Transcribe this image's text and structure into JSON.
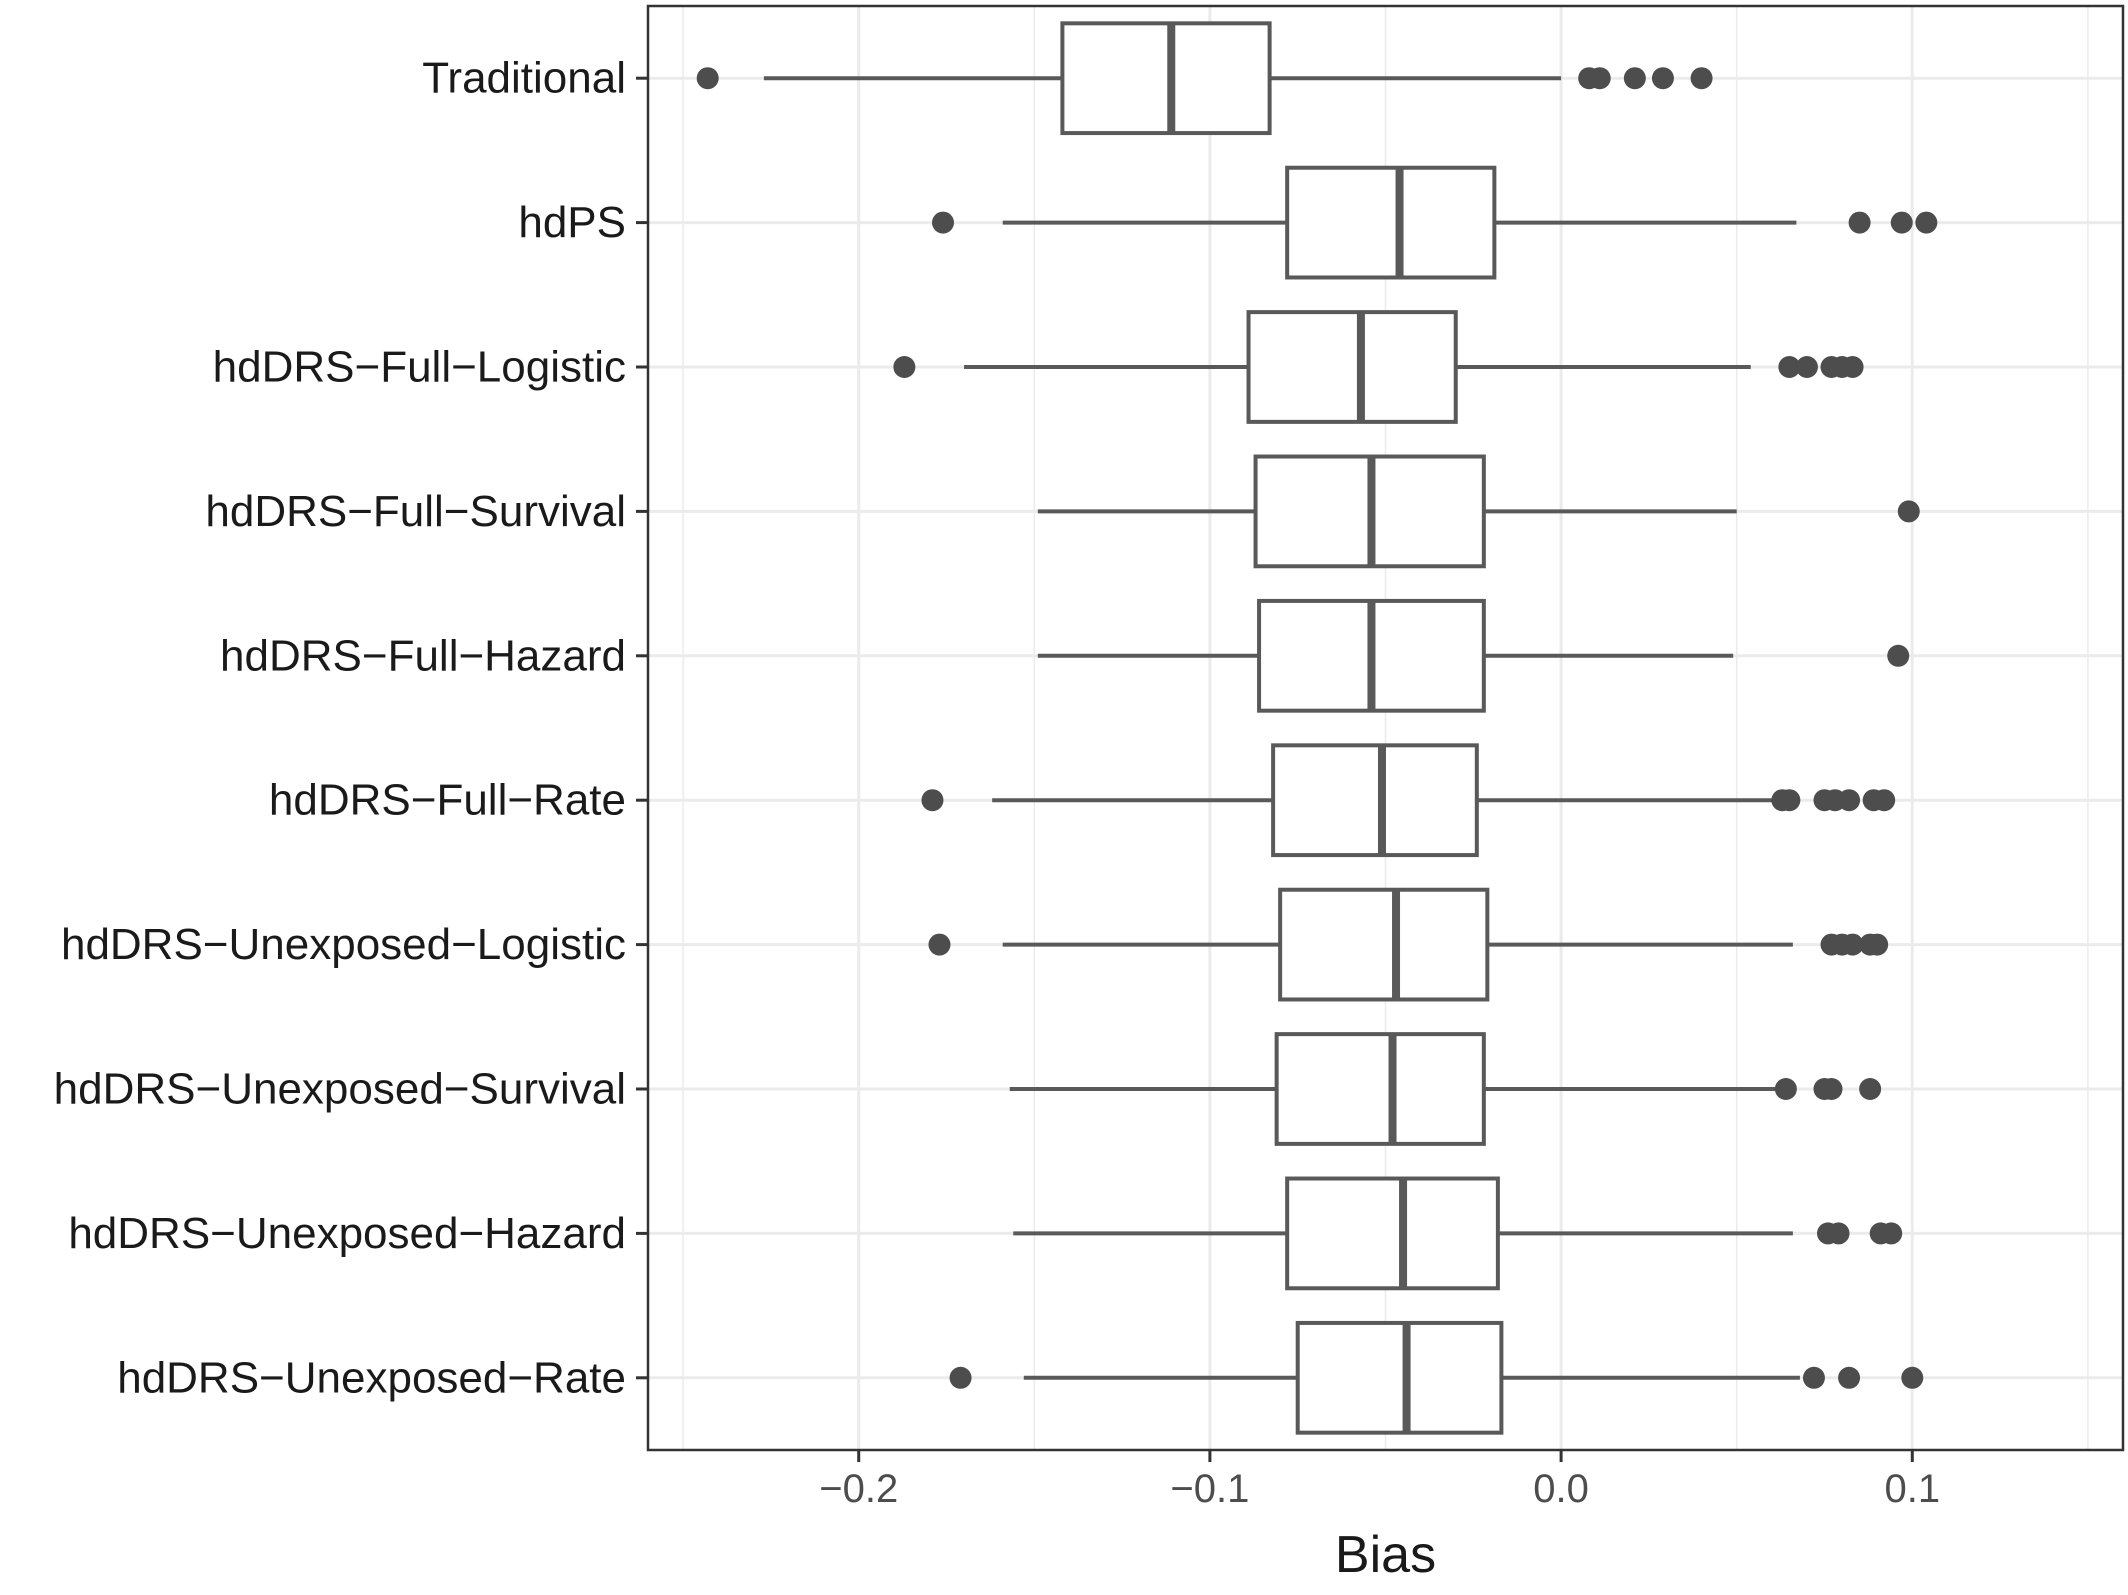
{
  "chart_data": {
    "type": "boxplot",
    "orientation": "horizontal",
    "xlabel": "Bias",
    "ylabel": "",
    "xlim": [
      -0.26,
      0.16
    ],
    "x_ticks": [
      -0.2,
      -0.1,
      0.0,
      0.1
    ],
    "x_tick_labels": [
      "−0.2",
      "−0.1",
      "0.0",
      "0.1"
    ],
    "grid": true,
    "colors": {
      "box_stroke": "#595959",
      "box_fill": "#ffffff",
      "outlier": "#4d4d4d",
      "grid": "#ebebeb",
      "panel_border": "#333333"
    },
    "categories": [
      "Traditional",
      "hdPS",
      "hdDRS−Full−Logistic",
      "hdDRS−Full−Survival",
      "hdDRS−Full−Hazard",
      "hdDRS−Full−Rate",
      "hdDRS−Unexposed−Logistic",
      "hdDRS−Unexposed−Survival",
      "hdDRS−Unexposed−Hazard",
      "hdDRS−Unexposed−Rate"
    ],
    "boxes": [
      {
        "whisker_low": -0.227,
        "q1": -0.142,
        "median": -0.111,
        "q3": -0.083,
        "whisker_high": 0.0,
        "outliers": [
          -0.243,
          0.008,
          0.011,
          0.021,
          0.029,
          0.04
        ]
      },
      {
        "whisker_low": -0.159,
        "q1": -0.078,
        "median": -0.046,
        "q3": -0.019,
        "whisker_high": 0.067,
        "outliers": [
          -0.176,
          0.085,
          0.097,
          0.104
        ]
      },
      {
        "whisker_low": -0.17,
        "q1": -0.089,
        "median": -0.057,
        "q3": -0.03,
        "whisker_high": 0.054,
        "outliers": [
          -0.187,
          0.065,
          0.07,
          0.077,
          0.08,
          0.083
        ]
      },
      {
        "whisker_low": -0.149,
        "q1": -0.087,
        "median": -0.054,
        "q3": -0.022,
        "whisker_high": 0.05,
        "outliers": [
          0.099
        ]
      },
      {
        "whisker_low": -0.149,
        "q1": -0.086,
        "median": -0.054,
        "q3": -0.022,
        "whisker_high": 0.049,
        "outliers": [
          0.096
        ]
      },
      {
        "whisker_low": -0.162,
        "q1": -0.082,
        "median": -0.051,
        "q3": -0.024,
        "whisker_high": 0.062,
        "outliers": [
          -0.179,
          0.063,
          0.065,
          0.075,
          0.078,
          0.082,
          0.089,
          0.092
        ]
      },
      {
        "whisker_low": -0.159,
        "q1": -0.08,
        "median": -0.047,
        "q3": -0.021,
        "whisker_high": 0.066,
        "outliers": [
          -0.177,
          0.077,
          0.08,
          0.083,
          0.088,
          0.09
        ]
      },
      {
        "whisker_low": -0.157,
        "q1": -0.081,
        "median": -0.048,
        "q3": -0.022,
        "whisker_high": 0.062,
        "outliers": [
          0.064,
          0.075,
          0.077,
          0.088
        ]
      },
      {
        "whisker_low": -0.156,
        "q1": -0.078,
        "median": -0.045,
        "q3": -0.018,
        "whisker_high": 0.066,
        "outliers": [
          0.076,
          0.079,
          0.091,
          0.094
        ]
      },
      {
        "whisker_low": -0.153,
        "q1": -0.075,
        "median": -0.044,
        "q3": -0.017,
        "whisker_high": 0.068,
        "outliers": [
          -0.171,
          0.072,
          0.082,
          0.1
        ]
      }
    ]
  }
}
